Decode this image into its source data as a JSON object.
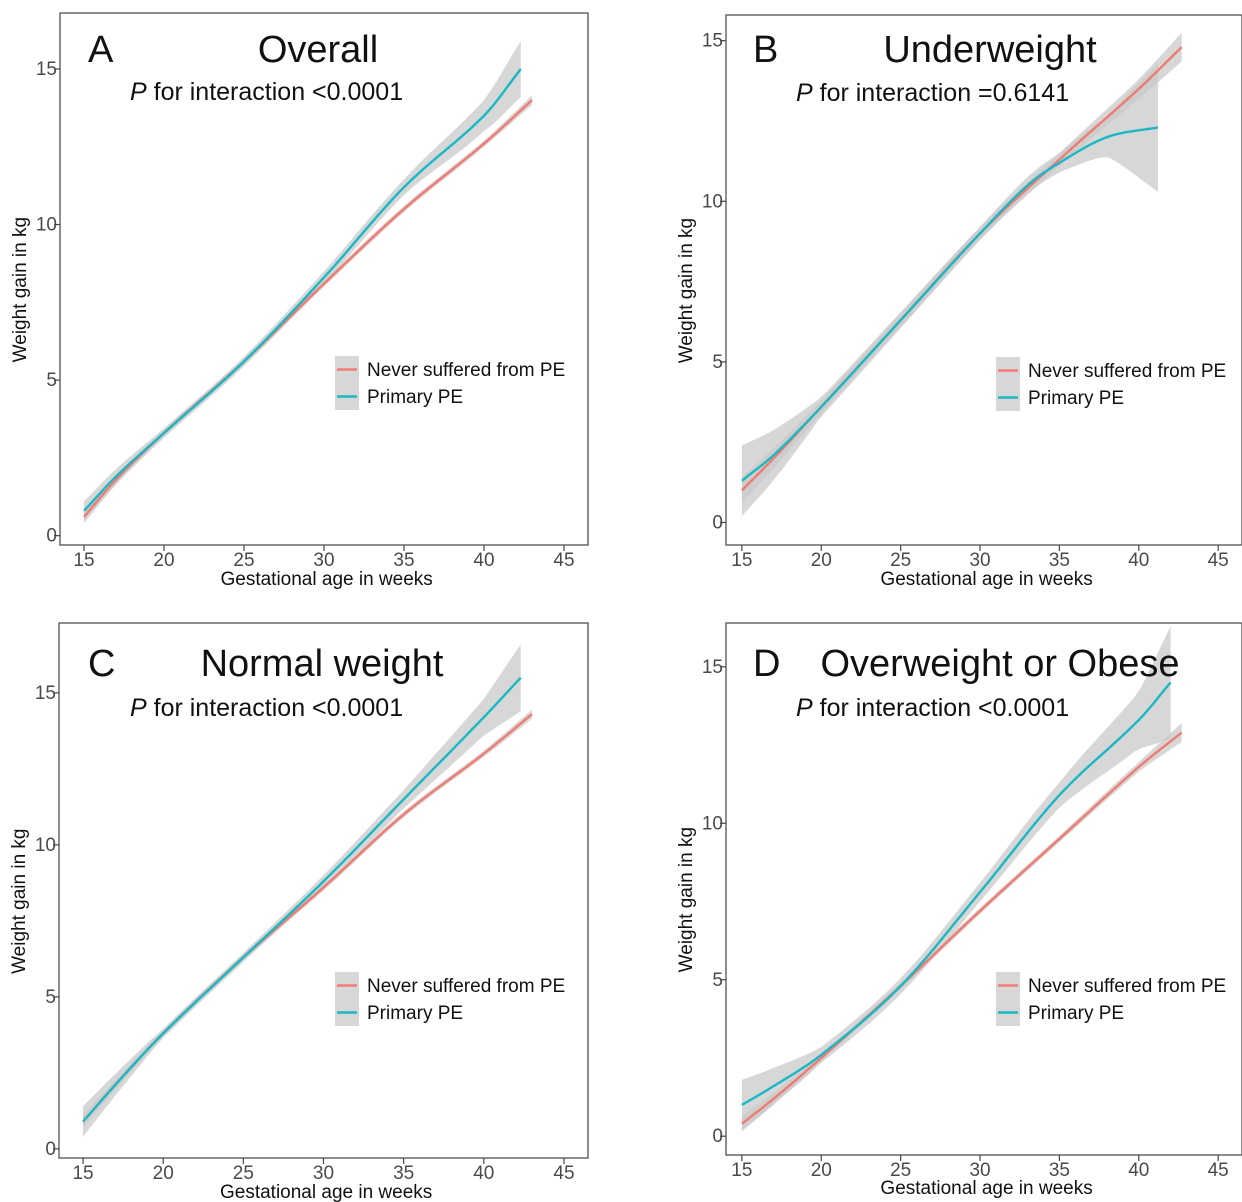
{
  "colors": {
    "never_pe": "#f07b73",
    "primary_pe": "#1ab8c4",
    "ribbon": "#c9c9c9",
    "frame": "#444444"
  },
  "chart_data": [
    {
      "type": "line",
      "panel_letter": "A",
      "title": "Overall",
      "annotation": {
        "italic": "P",
        "text": " for interaction <0.0001"
      },
      "xlabel": "Gestational age in weeks",
      "ylabel": "Weight gain in kg",
      "xlim": [
        13.5,
        46.5
      ],
      "ylim": [
        -0.3,
        16.8
      ],
      "xticks": [
        15,
        20,
        25,
        30,
        35,
        40,
        45
      ],
      "yticks": [
        0,
        5,
        10,
        15
      ],
      "legend": {
        "position": "right",
        "entries": [
          "Never suffered from PE",
          "Primary PE"
        ]
      },
      "grid": false,
      "series": [
        {
          "name": "Never suffered from PE",
          "color_key": "never_pe",
          "points": [
            [
              15,
              0.6
            ],
            [
              17,
              1.8
            ],
            [
              20,
              3.3
            ],
            [
              25,
              5.6
            ],
            [
              30,
              8.1
            ],
            [
              35,
              10.5
            ],
            [
              40,
              12.6
            ],
            [
              43,
              14.0
            ]
          ],
          "ci": [
            [
              15,
              0.2
            ],
            [
              20,
              0.1
            ],
            [
              25,
              0.1
            ],
            [
              30,
              0.1
            ],
            [
              35,
              0.1
            ],
            [
              40,
              0.1
            ],
            [
              43,
              0.15
            ]
          ]
        },
        {
          "name": "Primary PE",
          "color_key": "primary_pe",
          "points": [
            [
              15,
              0.8
            ],
            [
              17,
              1.9
            ],
            [
              20,
              3.3
            ],
            [
              25,
              5.6
            ],
            [
              30,
              8.3
            ],
            [
              35,
              11.2
            ],
            [
              40,
              13.5
            ],
            [
              42.3,
              15.0
            ]
          ],
          "ci": [
            [
              15,
              0.3
            ],
            [
              20,
              0.15
            ],
            [
              25,
              0.15
            ],
            [
              30,
              0.2
            ],
            [
              35,
              0.25
            ],
            [
              40,
              0.5
            ],
            [
              42.3,
              0.9
            ]
          ]
        }
      ]
    },
    {
      "type": "line",
      "panel_letter": "B",
      "title": "Underweight",
      "annotation": {
        "italic": "P",
        "text": " for interaction =0.6141"
      },
      "xlabel": "Gestational age in weeks",
      "ylabel": "Weight gain in kg",
      "xlim": [
        14,
        46.5
      ],
      "ylim": [
        -0.7,
        15.8
      ],
      "xticks": [
        15,
        20,
        25,
        30,
        35,
        40,
        45
      ],
      "yticks": [
        0,
        5,
        10,
        15
      ],
      "legend": {
        "position": "right",
        "entries": [
          "Never suffered from PE",
          "Primary PE"
        ]
      },
      "grid": false,
      "series": [
        {
          "name": "Never suffered from PE",
          "color_key": "never_pe",
          "points": [
            [
              15,
              1.0
            ],
            [
              17,
              2.0
            ],
            [
              20,
              3.6
            ],
            [
              25,
              6.3
            ],
            [
              30,
              9.0
            ],
            [
              35,
              11.3
            ],
            [
              40,
              13.5
            ],
            [
              42.7,
              14.8
            ]
          ],
          "ci": [
            [
              15,
              0.4
            ],
            [
              20,
              0.2
            ],
            [
              25,
              0.2
            ],
            [
              30,
              0.2
            ],
            [
              35,
              0.2
            ],
            [
              40,
              0.3
            ],
            [
              42.7,
              0.45
            ]
          ]
        },
        {
          "name": "Primary PE",
          "color_key": "primary_pe",
          "points": [
            [
              15,
              1.3
            ],
            [
              17,
              2.1
            ],
            [
              20,
              3.6
            ],
            [
              25,
              6.3
            ],
            [
              30,
              9.0
            ],
            [
              33,
              10.5
            ],
            [
              35,
              11.2
            ],
            [
              38,
              12.0
            ],
            [
              41.2,
              12.3
            ]
          ],
          "ci": [
            [
              15,
              1.1
            ],
            [
              20,
              0.3
            ],
            [
              25,
              0.25
            ],
            [
              30,
              0.2
            ],
            [
              35,
              0.3
            ],
            [
              38,
              0.6
            ],
            [
              41.2,
              2.0
            ]
          ]
        }
      ]
    },
    {
      "type": "line",
      "panel_letter": "C",
      "title": "Normal weight",
      "annotation": {
        "italic": "P",
        "text": " for interaction <0.0001"
      },
      "xlabel": "Gestational age in weeks",
      "ylabel": "Weight gain in kg",
      "xlim": [
        13.5,
        46.5
      ],
      "ylim": [
        -0.3,
        17.3
      ],
      "xticks": [
        15,
        20,
        25,
        30,
        35,
        40,
        45
      ],
      "yticks": [
        0,
        5,
        10,
        15
      ],
      "legend": {
        "position": "right",
        "entries": [
          "Never suffered from PE",
          "Primary PE"
        ]
      },
      "grid": false,
      "series": [
        {
          "name": "Never suffered from PE",
          "color_key": "never_pe",
          "points": [
            [
              15,
              0.9
            ],
            [
              17,
              2.1
            ],
            [
              20,
              3.8
            ],
            [
              25,
              6.3
            ],
            [
              30,
              8.6
            ],
            [
              35,
              11.0
            ],
            [
              40,
              13.0
            ],
            [
              43,
              14.3
            ]
          ],
          "ci": [
            [
              15,
              0.2
            ],
            [
              20,
              0.1
            ],
            [
              25,
              0.1
            ],
            [
              30,
              0.1
            ],
            [
              35,
              0.1
            ],
            [
              40,
              0.1
            ],
            [
              43,
              0.15
            ]
          ]
        },
        {
          "name": "Primary PE",
          "color_key": "primary_pe",
          "points": [
            [
              15,
              0.9
            ],
            [
              17,
              2.1
            ],
            [
              20,
              3.8
            ],
            [
              25,
              6.3
            ],
            [
              30,
              8.8
            ],
            [
              35,
              11.5
            ],
            [
              40,
              14.2
            ],
            [
              42.3,
              15.5
            ]
          ],
          "ci": [
            [
              15,
              0.5
            ],
            [
              20,
              0.15
            ],
            [
              25,
              0.15
            ],
            [
              30,
              0.2
            ],
            [
              35,
              0.3
            ],
            [
              40,
              0.6
            ],
            [
              42.3,
              1.1
            ]
          ]
        }
      ]
    },
    {
      "type": "line",
      "panel_letter": "D",
      "title": "Overweight or Obese",
      "annotation": {
        "italic": "P",
        "text": " for interaction <0.0001"
      },
      "xlabel": "Gestational age in weeks",
      "ylabel": "Weight gain in kg",
      "xlim": [
        14,
        46.5
      ],
      "ylim": [
        -0.6,
        16.4
      ],
      "xticks": [
        15,
        20,
        25,
        30,
        35,
        40,
        45
      ],
      "yticks": [
        0,
        5,
        10,
        15
      ],
      "legend": {
        "position": "right",
        "entries": [
          "Never suffered from PE",
          "Primary PE"
        ]
      },
      "grid": false,
      "series": [
        {
          "name": "Never suffered from PE",
          "color_key": "never_pe",
          "points": [
            [
              15,
              0.4
            ],
            [
              17,
              1.2
            ],
            [
              20,
              2.5
            ],
            [
              25,
              4.8
            ],
            [
              30,
              7.2
            ],
            [
              35,
              9.5
            ],
            [
              40,
              11.8
            ],
            [
              42.7,
              12.9
            ]
          ],
          "ci": [
            [
              15,
              0.25
            ],
            [
              20,
              0.1
            ],
            [
              25,
              0.1
            ],
            [
              30,
              0.1
            ],
            [
              35,
              0.1
            ],
            [
              40,
              0.15
            ],
            [
              42.7,
              0.3
            ]
          ]
        },
        {
          "name": "Primary PE",
          "color_key": "primary_pe",
          "points": [
            [
              15,
              1.0
            ],
            [
              17,
              1.6
            ],
            [
              20,
              2.6
            ],
            [
              25,
              4.8
            ],
            [
              30,
              7.8
            ],
            [
              35,
              10.9
            ],
            [
              40,
              13.3
            ],
            [
              42,
              14.5
            ]
          ],
          "ci": [
            [
              15,
              0.8
            ],
            [
              20,
              0.25
            ],
            [
              25,
              0.25
            ],
            [
              30,
              0.3
            ],
            [
              35,
              0.4
            ],
            [
              40,
              0.9
            ],
            [
              42,
              1.8
            ]
          ]
        }
      ]
    }
  ]
}
